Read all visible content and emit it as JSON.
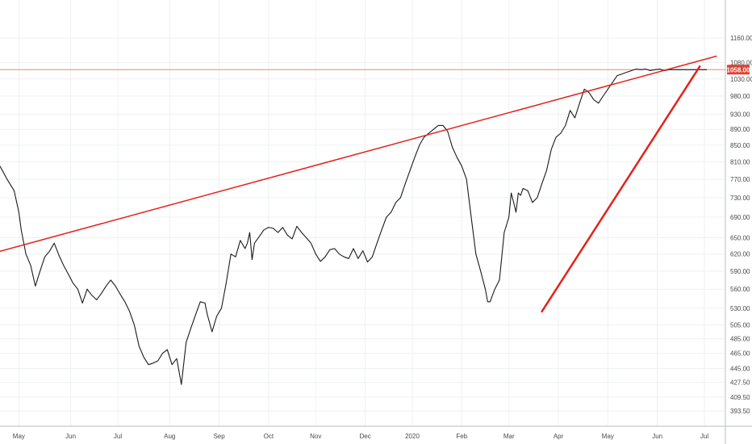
{
  "chart_data": {
    "type": "line",
    "scale": "log",
    "grid": true,
    "legend": "none",
    "y_ticks": [
      "1160.00",
      "1080.00",
      "1030.00",
      "980.00",
      "930.00",
      "890.00",
      "850.00",
      "810.00",
      "770.00",
      "730.00",
      "690.00",
      "650.00",
      "620.00",
      "590.00",
      "560.00",
      "530.00",
      "505.00",
      "485.00",
      "465.00",
      "445.00",
      "427.50",
      "409.50",
      "393.50"
    ],
    "x_ticks": [
      "May",
      "Jun",
      "Jul",
      "Aug",
      "Sep",
      "Oct",
      "Nov",
      "Dec",
      "2020",
      "Feb",
      "Mar",
      "Apr",
      "May",
      "Jun",
      "Jul"
    ],
    "ylim": [
      380,
      1250
    ],
    "xlim": [
      0,
      300
    ],
    "x_month_positions": [
      8,
      30,
      50,
      72,
      93,
      114,
      134,
      155,
      175,
      196,
      216,
      237,
      258,
      279,
      299
    ],
    "price_series": {
      "name": "",
      "x": [
        0,
        3,
        6,
        8,
        9,
        11,
        13,
        15,
        17,
        19,
        21,
        23,
        25,
        27,
        29,
        31,
        33,
        35,
        37,
        39,
        41,
        43,
        45,
        47,
        49,
        51,
        53,
        55,
        57,
        59,
        61,
        63,
        65,
        67,
        69,
        71,
        73,
        75,
        77,
        79,
        81,
        83,
        85,
        87,
        88,
        90,
        92,
        94,
        96,
        98,
        100,
        102,
        104,
        105,
        106,
        107,
        108,
        110,
        112,
        114,
        116,
        118,
        120,
        122,
        124,
        126,
        128,
        130,
        132,
        134,
        136,
        138,
        140,
        142,
        144,
        146,
        148,
        150,
        152,
        154,
        156,
        158,
        160,
        162,
        164,
        166,
        168,
        170,
        172,
        174,
        176,
        178,
        180,
        182,
        184,
        186,
        188,
        190,
        192,
        194,
        196,
        198,
        200,
        202,
        204,
        206,
        207,
        208,
        210,
        212,
        214,
        216,
        217,
        218,
        219,
        220,
        221,
        222,
        224,
        226,
        228,
        230,
        232,
        234,
        236,
        238,
        240,
        242,
        244,
        246,
        248,
        250,
        252,
        254,
        256,
        258,
        260,
        262,
        264,
        266,
        268,
        270,
        272,
        274,
        276,
        278,
        280,
        282,
        284,
        286,
        288,
        290,
        292,
        294,
        296,
        298,
        300
      ],
      "values": [
        800,
        770,
        745,
        700,
        665,
        620,
        600,
        565,
        590,
        615,
        625,
        640,
        618,
        600,
        585,
        570,
        560,
        538,
        560,
        550,
        543,
        553,
        565,
        575,
        565,
        552,
        540,
        525,
        505,
        475,
        460,
        450,
        452,
        455,
        465,
        470,
        450,
        458,
        425,
        480,
        500,
        520,
        540,
        538,
        520,
        495,
        518,
        530,
        570,
        620,
        615,
        645,
        630,
        640,
        660,
        610,
        640,
        652,
        665,
        670,
        668,
        660,
        670,
        655,
        648,
        672,
        660,
        650,
        640,
        620,
        607,
        615,
        628,
        630,
        620,
        615,
        612,
        630,
        612,
        626,
        606,
        615,
        640,
        665,
        690,
        700,
        720,
        730,
        760,
        790,
        820,
        850,
        870,
        880,
        890,
        900,
        900,
        885,
        845,
        820,
        800,
        770,
        690,
        620,
        590,
        560,
        540,
        540,
        560,
        575,
        660,
        690,
        740,
        720,
        700,
        740,
        735,
        750,
        745,
        720,
        730,
        760,
        790,
        840,
        870,
        880,
        900,
        940,
        920,
        960,
        1000,
        990,
        970,
        960,
        980,
        1000,
        1020,
        1040,
        1045,
        1050,
        1055,
        1060,
        1058,
        1060,
        1055,
        1058,
        1060,
        1055,
        1058,
        1058,
        1058,
        1058,
        1058,
        1058,
        1058,
        1058,
        1058
      ]
    },
    "trendlines": [
      {
        "name": "",
        "x": [
          0,
          304
        ],
        "values": [
          625,
          1100
        ]
      },
      {
        "name": "",
        "x": [
          230,
          297
        ],
        "values": [
          525,
          1068
        ]
      }
    ],
    "hline": {
      "value": 1058.0,
      "label": "1058.00"
    },
    "colors": {
      "price": "#1a1a1a",
      "trend": "#e3221b",
      "hline": "#f08878",
      "badge": "#e04030",
      "grid": "#eef0f3"
    }
  }
}
